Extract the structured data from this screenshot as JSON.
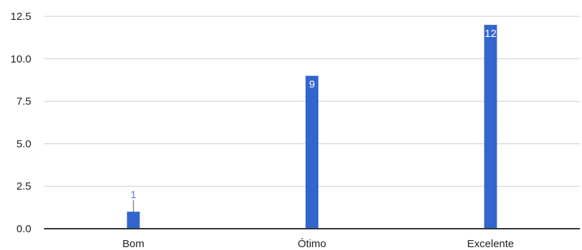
{
  "chart_data": {
    "type": "bar",
    "title": "",
    "xlabel": "",
    "ylabel": "",
    "categories": [
      "Bom",
      "Ótimo",
      "Excelente"
    ],
    "values": [
      1,
      9,
      12
    ],
    "data_labels": [
      "1",
      "9",
      "12"
    ],
    "ylim": [
      0,
      12.5
    ],
    "y_ticks": [
      0,
      2.5,
      5,
      7.5,
      10,
      12.5
    ],
    "y_tick_labels": [
      "0.0",
      "2.5",
      "5.0",
      "7.5",
      "10.0",
      "12.5"
    ],
    "grid": true,
    "legend": "none"
  },
  "colors": {
    "bar": "#3366cc",
    "grid": "#cccccc",
    "baseline": "#333333",
    "label_inside": "#ffffff",
    "label_outside": "#5b7fd6"
  }
}
